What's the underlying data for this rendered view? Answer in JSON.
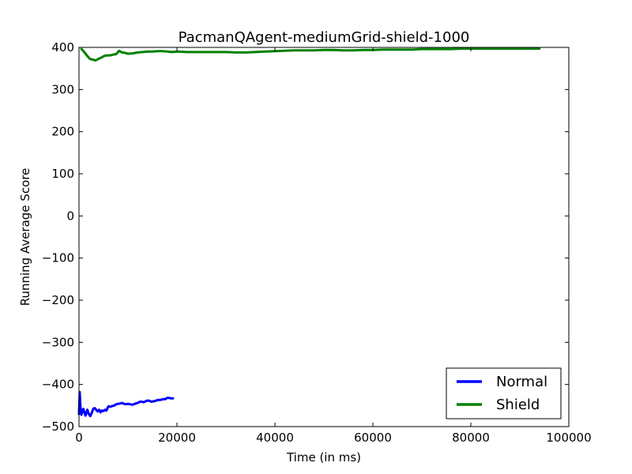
{
  "chart_data": {
    "type": "line",
    "title": "PacmanQAgent-mediumGrid-shield-1000",
    "xlabel": "Time (in ms)",
    "ylabel": "Running Average Score",
    "xlim": [
      0,
      100000
    ],
    "ylim": [
      -500,
      400
    ],
    "xticks": [
      0,
      20000,
      40000,
      60000,
      80000,
      100000
    ],
    "xtick_labels": [
      "0",
      "20000",
      "40000",
      "60000",
      "80000",
      "100000"
    ],
    "yticks": [
      -500,
      -400,
      -300,
      -200,
      -100,
      0,
      100,
      200,
      300,
      400
    ],
    "ytick_labels": [
      "−500",
      "−400",
      "−300",
      "−200",
      "−100",
      "0",
      "100",
      "200",
      "300",
      "400"
    ],
    "grid": false,
    "legend_position": "lower-right",
    "series": [
      {
        "name": "Normal",
        "color": "#0000ff",
        "x": [
          0,
          150,
          300,
          500,
          700,
          900,
          1100,
          1300,
          1500,
          1700,
          2000,
          2300,
          2600,
          2900,
          3200,
          3500,
          3800,
          4100,
          4400,
          4700,
          5000,
          5300,
          5600,
          6000,
          6400,
          6800,
          7200,
          7600,
          8000,
          8400,
          8800,
          9200,
          9600,
          10000,
          10400,
          10800,
          11200,
          11600,
          12000,
          12400,
          12800,
          13200,
          13600,
          14000,
          14400,
          14800,
          15200,
          15600,
          16000,
          16400,
          16800,
          17200,
          17600,
          18000,
          18400,
          18800,
          19200
        ],
        "y": [
          -470,
          -418,
          -455,
          -472,
          -462,
          -458,
          -466,
          -474,
          -468,
          -460,
          -470,
          -475,
          -468,
          -458,
          -456,
          -460,
          -464,
          -460,
          -466,
          -462,
          -463,
          -460,
          -462,
          -452,
          -453,
          -451,
          -450,
          -447,
          -446,
          -445,
          -444,
          -446,
          -447,
          -446,
          -447,
          -448,
          -447,
          -445,
          -444,
          -441,
          -441,
          -442,
          -440,
          -438,
          -439,
          -441,
          -440,
          -439,
          -437,
          -437,
          -436,
          -435,
          -435,
          -432,
          -432,
          -433,
          -433
        ]
      },
      {
        "name": "Shield",
        "color": "#008000",
        "x": [
          500,
          1000,
          1600,
          2200,
          2800,
          3400,
          4000,
          4600,
          5200,
          5800,
          6400,
          7000,
          7600,
          8200,
          8800,
          9400,
          10000,
          11000,
          12000,
          13000,
          14000,
          15000,
          16000,
          17000,
          18000,
          19000,
          20000,
          22000,
          24000,
          26000,
          28000,
          30000,
          32000,
          34000,
          36000,
          38000,
          40000,
          42000,
          44000,
          46000,
          48000,
          50000,
          52000,
          54000,
          56000,
          58000,
          60000,
          62000,
          64000,
          66000,
          68000,
          70000,
          72000,
          74000,
          76000,
          78000,
          80000,
          82000,
          84000,
          86000,
          88000,
          90000,
          92000,
          94000
        ],
        "y": [
          396,
          390,
          381,
          373,
          371,
          369,
          373,
          376,
          380,
          381,
          381,
          383,
          384,
          392,
          388,
          387,
          385,
          386,
          388,
          389,
          390,
          390,
          391,
          391,
          390,
          389,
          390,
          389,
          389,
          389,
          389,
          389,
          388,
          388,
          389,
          390,
          391,
          392,
          393,
          393,
          393,
          394,
          394,
          393,
          393,
          394,
          394,
          395,
          395,
          395,
          395,
          396,
          396,
          396,
          396,
          397,
          397,
          397,
          397,
          397,
          397,
          397,
          397,
          397
        ]
      }
    ]
  }
}
